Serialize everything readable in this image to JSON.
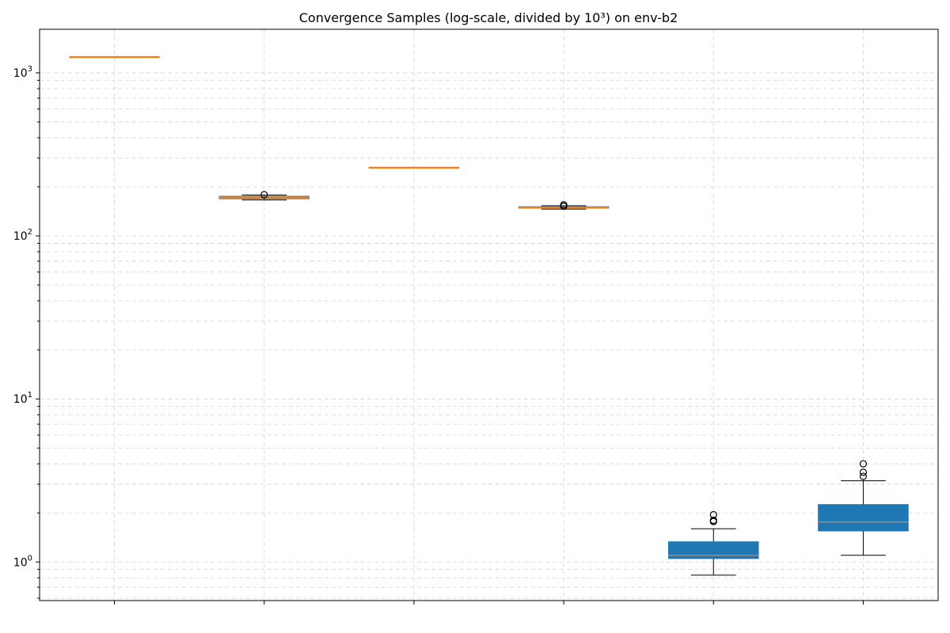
{
  "chart_data": {
    "type": "boxplot",
    "title": "Convergence Samples (log-scale, divided by 10³) on env-b2",
    "xlabel": "",
    "ylabel": "",
    "yscale": "log",
    "ylim": [
      0.58,
      1850
    ],
    "yticks": [
      {
        "value": 1,
        "label_base": "10",
        "label_exp": "0"
      },
      {
        "value": 10,
        "label_base": "10",
        "label_exp": "1"
      },
      {
        "value": 100,
        "label_base": "10",
        "label_exp": "2"
      },
      {
        "value": 1000,
        "label_base": "10",
        "label_exp": "3"
      }
    ],
    "categories": [
      "",
      "",
      "",
      "",
      "",
      ""
    ],
    "grid": true,
    "colors": {
      "box_fill": "#1f77b4",
      "median": "#ff7f0e",
      "whisker": "#000000",
      "grid": "#d3d3d3"
    },
    "boxes": [
      {
        "whislo": 1250,
        "q1": 1250,
        "med": 1250,
        "q3": 1250,
        "whishi": 1250,
        "fliers": []
      },
      {
        "whislo": 166,
        "q1": 169,
        "med": 172,
        "q3": 175,
        "whishi": 178,
        "fliers": [
          179
        ]
      },
      {
        "whislo": 262,
        "q1": 262,
        "med": 262,
        "q3": 263,
        "whishi": 263,
        "fliers": []
      },
      {
        "whislo": 146,
        "q1": 148,
        "med": 149,
        "q3": 151,
        "whishi": 153,
        "fliers": [
          155,
          152
        ]
      },
      {
        "whislo": 0.83,
        "q1": 1.05,
        "med": 1.1,
        "q3": 1.33,
        "whishi": 1.6,
        "fliers": [
          1.95,
          1.8,
          1.77
        ]
      },
      {
        "whislo": 1.1,
        "q1": 1.55,
        "med": 1.76,
        "q3": 2.25,
        "whishi": 3.15,
        "fliers": [
          4.0,
          3.55,
          3.35
        ]
      }
    ]
  }
}
